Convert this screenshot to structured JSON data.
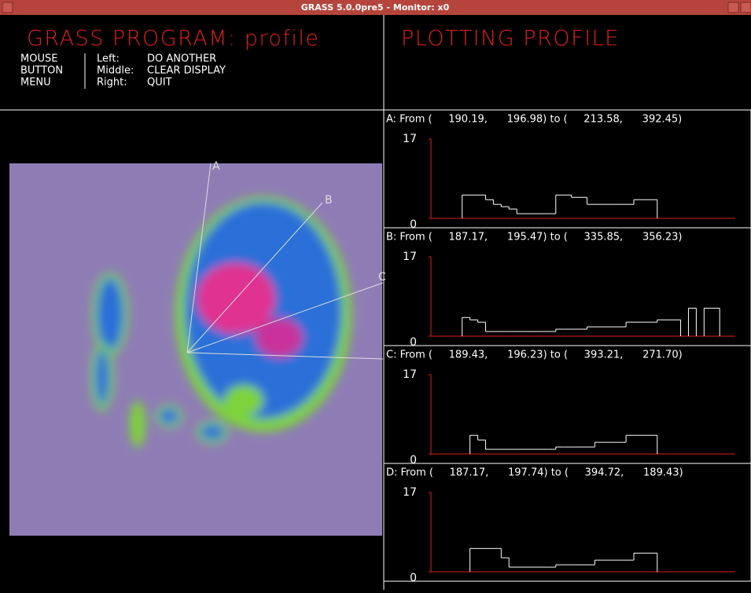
{
  "window": {
    "title": "GRASS 5.0.0pre5 - Monitor: x0"
  },
  "header": {
    "program": "GRASS PROGRAM: profile",
    "menu_label": [
      "MOUSE",
      "BUTTON",
      "MENU"
    ],
    "buttons": [
      {
        "key": "Left:",
        "action": "DO ANOTHER"
      },
      {
        "key": "Middle:",
        "action": "CLEAR DISPLAY"
      },
      {
        "key": "Right:",
        "action": "QUIT"
      }
    ],
    "status": "PLOTTING PROFILE"
  },
  "map": {
    "line_labels": [
      "A",
      "B",
      "C"
    ]
  },
  "chart_data": [
    {
      "type": "line",
      "title": "A: From (     190.19,      196.98) to (     213.58,      392.45)",
      "ylim": [
        0,
        17
      ],
      "yticks": [
        0,
        17
      ],
      "color": "#ffffff",
      "values": [
        null,
        null,
        null,
        null,
        5,
        5,
        5,
        4,
        3,
        2.5,
        2,
        1,
        1,
        1,
        1,
        1,
        5,
        5,
        4.5,
        4.5,
        3,
        3,
        3,
        3,
        3,
        3,
        4,
        4,
        4,
        null,
        null,
        null,
        null,
        null,
        null,
        null,
        null,
        null,
        null
      ]
    },
    {
      "type": "line",
      "title": "B: From (     187.17,      195.47) to (     335.85,      356.23)",
      "ylim": [
        0,
        17
      ],
      "yticks": [
        0,
        17
      ],
      "color": "#ffffff",
      "values": [
        null,
        null,
        null,
        null,
        4,
        3.5,
        3,
        1,
        1,
        1,
        1,
        1,
        1,
        1,
        1,
        1,
        1.5,
        1.5,
        1.5,
        1.5,
        2,
        2,
        2,
        2,
        2,
        3,
        3,
        3,
        3,
        3.5,
        3.5,
        3.5,
        null,
        6,
        null,
        6,
        6,
        null,
        null
      ]
    },
    {
      "type": "line",
      "title": "C: From (     189.43,      196.23) to (     393.21,      271.70)",
      "ylim": [
        0,
        17
      ],
      "yticks": [
        0,
        17
      ],
      "color": "#ffffff",
      "values": [
        null,
        null,
        null,
        null,
        null,
        4,
        3,
        1,
        1,
        1,
        1,
        1,
        1,
        1,
        1,
        1,
        1.5,
        1.5,
        1.5,
        1.5,
        1.5,
        2.5,
        2.5,
        2.5,
        2.5,
        4,
        4,
        4,
        4,
        null,
        null,
        null,
        null,
        null,
        null,
        null,
        null,
        null,
        null
      ]
    },
    {
      "type": "line",
      "title": "D: From (     187.17,      197.74) to (     394.72,      189.43)",
      "ylim": [
        0,
        17
      ],
      "yticks": [
        0,
        17
      ],
      "color": "#ffffff",
      "values": [
        null,
        null,
        null,
        null,
        null,
        5,
        5,
        5,
        5,
        3,
        1,
        1,
        1,
        1,
        1,
        1,
        1.5,
        1.5,
        1.5,
        1.5,
        1.5,
        2.5,
        2.5,
        2.5,
        2.5,
        2.5,
        4,
        4,
        4,
        null,
        null,
        null,
        null,
        null,
        null,
        null,
        null,
        null,
        null
      ]
    }
  ]
}
